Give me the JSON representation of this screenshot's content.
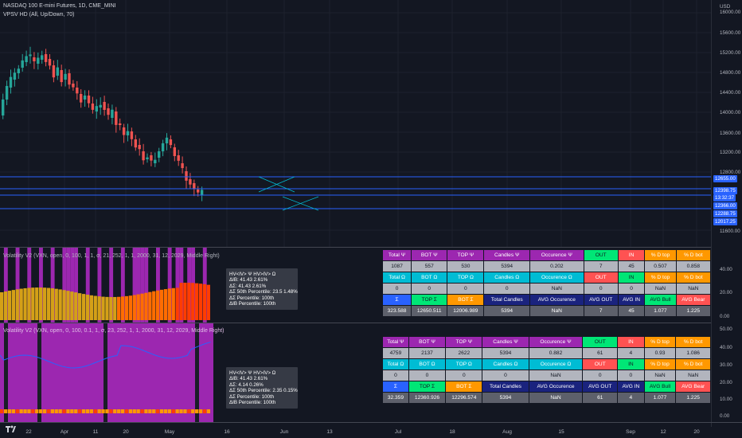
{
  "header": {
    "symbol_line": "NASDAQ 100 E-mini Futures, 1D, CME_MINI",
    "indicator_line": "VPSV HD (All, Up/Down, 70)",
    "currency": "USD"
  },
  "price_axis": {
    "labels": [
      "16000.00",
      "15600.00",
      "15200.00",
      "14800.00",
      "14400.00",
      "14000.00",
      "13600.00",
      "13200.00",
      "12800.00",
      "11600.00"
    ],
    "badges": [
      {
        "text": "12655.00",
        "color": "#2962ff"
      },
      {
        "text": "12398.75",
        "color": "#2962ff"
      },
      {
        "text": "13:32:37",
        "color": "#2962ff"
      },
      {
        "text": "12366.00",
        "color": "#2962ff"
      },
      {
        "text": "12288.75",
        "color": "#2962ff"
      },
      {
        "text": "12017.25",
        "color": "#2962ff"
      }
    ]
  },
  "pane1": {
    "title": "Volatility V2 (VXN, open, 0, 100, 1, 1, σ, 21, 252, 1, 1, 2000, 31, 12, 2029, Middle Right)",
    "axis_labels": [
      "40.00",
      "20.00",
      "0.00"
    ],
    "tooltip": [
      "HV<IV> Ψ  HV>IV> Ω",
      "ΔIB: 41.43  2.61%",
      "ΔΣ: 41.43  2.61%",
      "ΔΣ 50th Percentile: 23.5  1.48%",
      "ΔΣ Percentile: 100th",
      "ΔIB Percentile: 100th"
    ],
    "table": [
      [
        {
          "t": "Total Ψ",
          "c": "c-pur"
        },
        {
          "t": "BOT Ψ",
          "c": "c-pur"
        },
        {
          "t": "TOP Ψ",
          "c": "c-pur"
        },
        {
          "t": "Candles Ψ",
          "c": "c-pur"
        },
        {
          "t": "Occurence Ψ",
          "c": "c-pur"
        },
        {
          "t": "OUT",
          "c": "c-grn"
        },
        {
          "t": "IN",
          "c": "c-red"
        },
        {
          "t": "% D top",
          "c": "c-orn"
        },
        {
          "t": "% D bot",
          "c": "c-orn"
        }
      ],
      [
        {
          "t": "1087",
          "c": "c-val"
        },
        {
          "t": "557",
          "c": "c-val"
        },
        {
          "t": "530",
          "c": "c-val"
        },
        {
          "t": "5394",
          "c": "c-val"
        },
        {
          "t": "0.202",
          "c": "c-val"
        },
        {
          "t": "7",
          "c": "c-val"
        },
        {
          "t": "45",
          "c": "c-val"
        },
        {
          "t": "0.507",
          "c": "c-val"
        },
        {
          "t": "0.858",
          "c": "c-val"
        }
      ],
      [
        {
          "t": "Total Ω",
          "c": "c-cyan"
        },
        {
          "t": "BOT Ω",
          "c": "c-cyan"
        },
        {
          "t": "TOP Ω",
          "c": "c-cyan"
        },
        {
          "t": "Candles Ω",
          "c": "c-cyan"
        },
        {
          "t": "Occurence Ω",
          "c": "c-cyan"
        },
        {
          "t": "OUT",
          "c": "c-red"
        },
        {
          "t": "IN",
          "c": "c-grn"
        },
        {
          "t": "% D top",
          "c": "c-orn"
        },
        {
          "t": "% D bot",
          "c": "c-orn"
        }
      ],
      [
        {
          "t": "0",
          "c": "c-val"
        },
        {
          "t": "0",
          "c": "c-val"
        },
        {
          "t": "0",
          "c": "c-val"
        },
        {
          "t": "0",
          "c": "c-val"
        },
        {
          "t": "NaN",
          "c": "c-val"
        },
        {
          "t": "0",
          "c": "c-val"
        },
        {
          "t": "0",
          "c": "c-val"
        },
        {
          "t": "NaN",
          "c": "c-val"
        },
        {
          "t": "NaN",
          "c": "c-val"
        }
      ],
      [
        {
          "t": "Σ",
          "c": "c-blu"
        },
        {
          "t": "TOP Σ",
          "c": "c-grn"
        },
        {
          "t": "BOT Σ",
          "c": "c-orn"
        },
        {
          "t": "Total Candles",
          "c": "c-nvy"
        },
        {
          "t": "AVG Occurence",
          "c": "c-nvy"
        },
        {
          "t": "AVG OUT",
          "c": "c-nvy"
        },
        {
          "t": "AVG IN",
          "c": "c-nvy"
        },
        {
          "t": "AVG Bull",
          "c": "c-grn"
        },
        {
          "t": "AVG Bear",
          "c": "c-red"
        }
      ],
      [
        {
          "t": "323.588",
          "c": "c-gry"
        },
        {
          "t": "12650.511",
          "c": "c-gry"
        },
        {
          "t": "12006.989",
          "c": "c-gry"
        },
        {
          "t": "5394",
          "c": "c-gry"
        },
        {
          "t": "NaN",
          "c": "c-gry"
        },
        {
          "t": "7",
          "c": "c-gry"
        },
        {
          "t": "45",
          "c": "c-gry"
        },
        {
          "t": "1.077",
          "c": "c-gry"
        },
        {
          "t": "1.225",
          "c": "c-gry"
        }
      ]
    ]
  },
  "pane2": {
    "title": "Volatility V2 (VXN, open, 0, 100, 0.1, 1, σ, 23, 252, 1, 1, 2000, 31, 12, 2029, Middle Right)",
    "axis_labels": [
      "50.00",
      "40.00",
      "30.00",
      "20.00",
      "10.00",
      "0.00"
    ],
    "tooltip": [
      "HV<IV> Ψ  HV>IV> Ω",
      "ΔIB: 41.43  2.61%",
      "ΔΣ: 4.14  0.26%",
      "ΔΣ 50th Percentile: 2.35  0.15%",
      "ΔΣ Percentile: 100th",
      "ΔIB Percentile: 100th"
    ],
    "table": [
      [
        {
          "t": "Total Ψ",
          "c": "c-pur"
        },
        {
          "t": "BOT Ψ",
          "c": "c-pur"
        },
        {
          "t": "TOP Ψ",
          "c": "c-pur"
        },
        {
          "t": "Candles Ψ",
          "c": "c-pur"
        },
        {
          "t": "Occurence Ψ",
          "c": "c-pur"
        },
        {
          "t": "OUT",
          "c": "c-grn"
        },
        {
          "t": "IN",
          "c": "c-red"
        },
        {
          "t": "% D top",
          "c": "c-orn"
        },
        {
          "t": "% D bot",
          "c": "c-orn"
        }
      ],
      [
        {
          "t": "4759",
          "c": "c-val"
        },
        {
          "t": "2137",
          "c": "c-val"
        },
        {
          "t": "2622",
          "c": "c-val"
        },
        {
          "t": "5394",
          "c": "c-val"
        },
        {
          "t": "0.882",
          "c": "c-val"
        },
        {
          "t": "61",
          "c": "c-val"
        },
        {
          "t": "4",
          "c": "c-val"
        },
        {
          "t": "0.93",
          "c": "c-val"
        },
        {
          "t": "1.086",
          "c": "c-val"
        }
      ],
      [
        {
          "t": "Total Ω",
          "c": "c-cyan"
        },
        {
          "t": "BOT Ω",
          "c": "c-cyan"
        },
        {
          "t": "TOP Ω",
          "c": "c-cyan"
        },
        {
          "t": "Candles Ω",
          "c": "c-cyan"
        },
        {
          "t": "Occurence Ω",
          "c": "c-cyan"
        },
        {
          "t": "OUT",
          "c": "c-red"
        },
        {
          "t": "IN",
          "c": "c-grn"
        },
        {
          "t": "% D top",
          "c": "c-orn"
        },
        {
          "t": "% D bot",
          "c": "c-orn"
        }
      ],
      [
        {
          "t": "0",
          "c": "c-val"
        },
        {
          "t": "0",
          "c": "c-val"
        },
        {
          "t": "0",
          "c": "c-val"
        },
        {
          "t": "0",
          "c": "c-val"
        },
        {
          "t": "NaN",
          "c": "c-val"
        },
        {
          "t": "0",
          "c": "c-val"
        },
        {
          "t": "0",
          "c": "c-val"
        },
        {
          "t": "NaN",
          "c": "c-val"
        },
        {
          "t": "NaN",
          "c": "c-val"
        }
      ],
      [
        {
          "t": "Σ",
          "c": "c-blu"
        },
        {
          "t": "TOP Σ",
          "c": "c-grn"
        },
        {
          "t": "BOT Σ",
          "c": "c-orn"
        },
        {
          "t": "Total Candles",
          "c": "c-nvy"
        },
        {
          "t": "AVG Occurence",
          "c": "c-nvy"
        },
        {
          "t": "AVG OUT",
          "c": "c-nvy"
        },
        {
          "t": "AVG IN",
          "c": "c-nvy"
        },
        {
          "t": "AVG Bull",
          "c": "c-grn"
        },
        {
          "t": "AVG Bear",
          "c": "c-red"
        }
      ],
      [
        {
          "t": "32.359",
          "c": "c-gry"
        },
        {
          "t": "12360.926",
          "c": "c-gry"
        },
        {
          "t": "12296.574",
          "c": "c-gry"
        },
        {
          "t": "5394",
          "c": "c-gry"
        },
        {
          "t": "NaN",
          "c": "c-gry"
        },
        {
          "t": "61",
          "c": "c-gry"
        },
        {
          "t": "4",
          "c": "c-gry"
        },
        {
          "t": "1.077",
          "c": "c-gry"
        },
        {
          "t": "1.225",
          "c": "c-gry"
        }
      ]
    ]
  },
  "time_axis": [
    "22",
    "Apr",
    "11",
    "20",
    "May",
    "16",
    "Jun",
    "13",
    "Jul",
    "18",
    "Aug",
    "15",
    "Sep",
    "12",
    "20"
  ],
  "colors": {
    "bg": "#131722",
    "up": "#26a69a",
    "down": "#ef5350",
    "purple": "#9c27b0",
    "line": "#2962ff"
  }
}
